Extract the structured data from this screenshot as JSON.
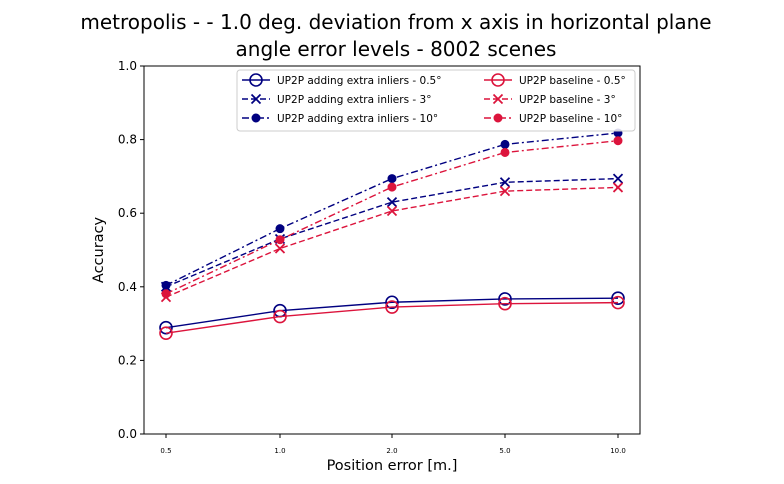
{
  "chart_data": {
    "type": "line",
    "title_line1": "metropolis -  - 1.0 deg. deviation from x axis in horizontal plane",
    "title_line2": "angle error levels - 8002 scenes",
    "xlabel": "Position error [m.]",
    "ylabel": "Accuracy",
    "categories": [
      "0.5",
      "1.0",
      "2.0",
      "5.0",
      "10.0"
    ],
    "ylim": [
      0,
      1
    ],
    "yticks": [
      "0.0",
      "0.2",
      "0.4",
      "0.6",
      "0.8",
      "1.0"
    ],
    "grid": false,
    "legend_position": "top-right",
    "series": [
      {
        "name": "UP2P adding extra inliers - 0.5°",
        "color": "#000080",
        "linestyle": "solid",
        "marker": "open-circle",
        "values": [
          0.289,
          0.335,
          0.358,
          0.367,
          0.369
        ]
      },
      {
        "name": "UP2P adding extra inliers - 3°",
        "color": "#000080",
        "linestyle": "dashed",
        "marker": "x",
        "values": [
          0.4,
          0.53,
          0.63,
          0.684,
          0.694
        ]
      },
      {
        "name": "UP2P adding extra inliers - 10°",
        "color": "#000080",
        "linestyle": "dashdot",
        "marker": "filled-circle",
        "values": [
          0.404,
          0.558,
          0.694,
          0.787,
          0.818
        ]
      },
      {
        "name": "UP2P baseline - 0.5°",
        "color": "#dc143c",
        "linestyle": "solid",
        "marker": "open-circle",
        "values": [
          0.274,
          0.319,
          0.345,
          0.354,
          0.357
        ]
      },
      {
        "name": "UP2P baseline - 3°",
        "color": "#dc143c",
        "linestyle": "dashed",
        "marker": "x",
        "values": [
          0.372,
          0.504,
          0.606,
          0.66,
          0.67
        ]
      },
      {
        "name": "UP2P baseline - 10°",
        "color": "#dc143c",
        "linestyle": "dashdot",
        "marker": "filled-circle",
        "values": [
          0.381,
          0.528,
          0.671,
          0.765,
          0.797
        ]
      }
    ]
  }
}
